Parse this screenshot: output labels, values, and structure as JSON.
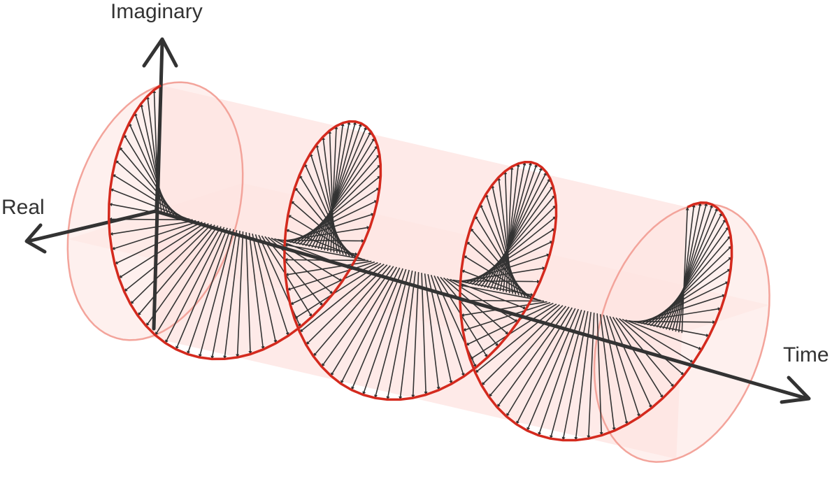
{
  "diagram": {
    "labels": {
      "imaginary": "Imaginary",
      "real": "Real",
      "time": "Time"
    },
    "colors": {
      "axis": "#333333",
      "helix": "#d42a1e",
      "arrow": "#333333",
      "cylinder_fill": "#fde3e0",
      "cylinder_edge": "#f3a49b"
    },
    "helix": {
      "turns": 3,
      "arrows_per_turn": 56
    }
  }
}
